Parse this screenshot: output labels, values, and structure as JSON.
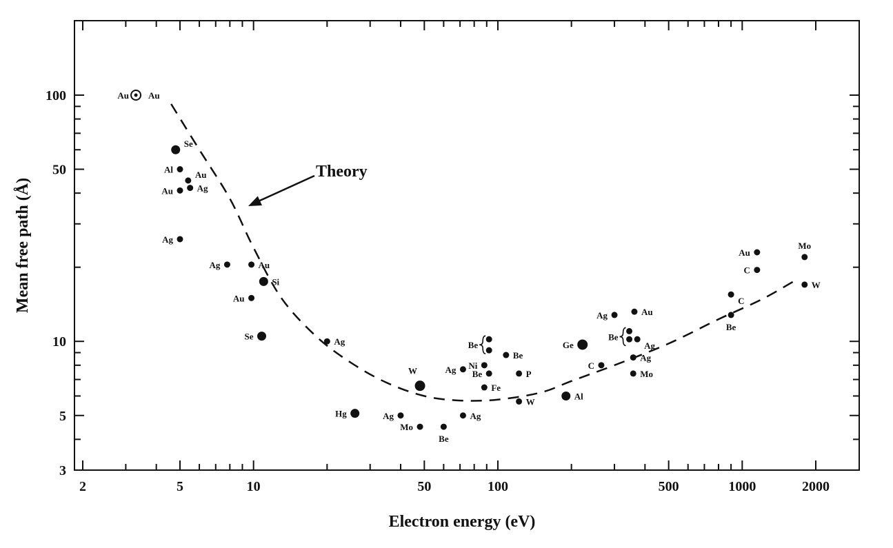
{
  "chart_data": {
    "type": "scatter",
    "xlabel": "Electron energy (eV)",
    "ylabel": "Mean free path (Å)",
    "x_scale": "log",
    "y_scale": "log",
    "xlim": [
      2,
      2500
    ],
    "ylim": [
      3,
      200
    ],
    "x_ticks": [
      {
        "value": 2,
        "label": "2"
      },
      {
        "value": 5,
        "label": "5"
      },
      {
        "value": 10,
        "label": "10"
      },
      {
        "value": 50,
        "label": "50"
      },
      {
        "value": 100,
        "label": "100"
      },
      {
        "value": 500,
        "label": "500"
      },
      {
        "value": 1000,
        "label": "1000"
      },
      {
        "value": 2000,
        "label": "2000"
      }
    ],
    "y_ticks": [
      {
        "value": 3,
        "label": "3"
      },
      {
        "value": 5,
        "label": "5"
      },
      {
        "value": 10,
        "label": "10"
      },
      {
        "value": 50,
        "label": "50"
      },
      {
        "value": 100,
        "label": "100"
      }
    ],
    "annotation": {
      "text": "Theory",
      "points_to": [
        9,
        35
      ]
    },
    "theory_curve": [
      [
        4.6,
        92
      ],
      [
        6,
        60
      ],
      [
        8,
        38
      ],
      [
        10,
        24
      ],
      [
        13,
        15
      ],
      [
        18,
        10.5
      ],
      [
        25,
        8.2
      ],
      [
        35,
        6.8
      ],
      [
        50,
        6.0
      ],
      [
        70,
        5.75
      ],
      [
        100,
        5.8
      ],
      [
        150,
        6.2
      ],
      [
        200,
        6.9
      ],
      [
        300,
        8.0
      ],
      [
        500,
        9.8
      ],
      [
        800,
        12.3
      ],
      [
        1200,
        14.8
      ],
      [
        1700,
        18.0
      ]
    ],
    "points": [
      {
        "x": 3.3,
        "y": 100,
        "label": "Au",
        "pos": "left",
        "size": 4,
        "ring": true
      },
      {
        "x": 3.3,
        "y": 100,
        "label": "Au",
        "pos": "right",
        "size": 0
      },
      {
        "x": 4.8,
        "y": 60,
        "label": "Se",
        "pos": "upright",
        "size": 6
      },
      {
        "x": 5.0,
        "y": 50,
        "label": "Al",
        "pos": "left",
        "size": 4
      },
      {
        "x": 5.4,
        "y": 45,
        "label": "Au",
        "pos": "upright",
        "size": 4
      },
      {
        "x": 5.0,
        "y": 41,
        "label": "Au",
        "pos": "left",
        "size": 4
      },
      {
        "x": 5.5,
        "y": 42,
        "label": "Ag",
        "pos": "right",
        "size": 4
      },
      {
        "x": 5.0,
        "y": 26,
        "label": "Ag",
        "pos": "left",
        "size": 4
      },
      {
        "x": 7.8,
        "y": 20.5,
        "label": "Ag",
        "pos": "left",
        "size": 4
      },
      {
        "x": 9.8,
        "y": 20.5,
        "label": "Au",
        "pos": "right",
        "size": 4
      },
      {
        "x": 11.0,
        "y": 17.5,
        "label": "Si",
        "pos": "right",
        "size": 6
      },
      {
        "x": 9.8,
        "y": 15.0,
        "label": "Au",
        "pos": "left",
        "size": 4
      },
      {
        "x": 10.8,
        "y": 10.5,
        "label": "Se",
        "pos": "left",
        "size": 6
      },
      {
        "x": 20,
        "y": 10,
        "label": "Ag",
        "pos": "right",
        "size": 4
      },
      {
        "x": 26,
        "y": 5.1,
        "label": "Hg",
        "pos": "left",
        "size": 6
      },
      {
        "x": 40,
        "y": 5.0,
        "label": "Ag",
        "pos": "left",
        "size": 4
      },
      {
        "x": 48,
        "y": 6.6,
        "label": "W",
        "pos": "upleft",
        "size": 7
      },
      {
        "x": 48,
        "y": 4.5,
        "label": "Mo",
        "pos": "left",
        "size": 4
      },
      {
        "x": 60,
        "y": 4.5,
        "label": "Be",
        "pos": "below",
        "size": 4
      },
      {
        "x": 72,
        "y": 5.0,
        "label": "Ag",
        "pos": "right",
        "size": 4
      },
      {
        "x": 72,
        "y": 7.7,
        "label": "Ag",
        "pos": "left",
        "size": 4
      },
      {
        "x": 88,
        "y": 8.0,
        "label": "Ni",
        "pos": "left",
        "size": 4
      },
      {
        "x": 92,
        "y": 7.4,
        "label": "Be",
        "pos": "left",
        "size": 4
      },
      {
        "x": 88,
        "y": 6.5,
        "label": "Fe",
        "pos": "right",
        "size": 4
      },
      {
        "x": 92,
        "y": 10.2,
        "label": "Be",
        "pos": "brace-left",
        "size": 4
      },
      {
        "x": 92,
        "y": 9.2,
        "label": "",
        "pos": "none",
        "size": 4
      },
      {
        "x": 108,
        "y": 8.8,
        "label": "Be",
        "pos": "right",
        "size": 4
      },
      {
        "x": 122,
        "y": 7.4,
        "label": "P",
        "pos": "right",
        "size": 4
      },
      {
        "x": 122,
        "y": 5.7,
        "label": "W",
        "pos": "right",
        "size": 4
      },
      {
        "x": 190,
        "y": 6.0,
        "label": "Al",
        "pos": "right",
        "size": 6
      },
      {
        "x": 222,
        "y": 9.7,
        "label": "Ge",
        "pos": "left",
        "size": 7
      },
      {
        "x": 265,
        "y": 8.0,
        "label": "C",
        "pos": "left",
        "size": 4
      },
      {
        "x": 300,
        "y": 12.8,
        "label": "Ag",
        "pos": "left",
        "size": 4
      },
      {
        "x": 345,
        "y": 11.0,
        "label": "Be",
        "pos": "brace-left",
        "size": 4
      },
      {
        "x": 345,
        "y": 10.2,
        "label": "",
        "pos": "none",
        "size": 4
      },
      {
        "x": 372,
        "y": 10.2,
        "label": "Ag",
        "pos": "downright",
        "size": 4
      },
      {
        "x": 362,
        "y": 13.2,
        "label": "Au",
        "pos": "right",
        "size": 4
      },
      {
        "x": 358,
        "y": 8.6,
        "label": "Ag",
        "pos": "right",
        "size": 4
      },
      {
        "x": 358,
        "y": 7.4,
        "label": "Mo",
        "pos": "right",
        "size": 4
      },
      {
        "x": 900,
        "y": 15.5,
        "label": "C",
        "pos": "downright",
        "size": 4
      },
      {
        "x": 900,
        "y": 12.8,
        "label": "Be",
        "pos": "below",
        "size": 4
      },
      {
        "x": 1150,
        "y": 23,
        "label": "Au",
        "pos": "left",
        "size": 4
      },
      {
        "x": 1150,
        "y": 19.5,
        "label": "C",
        "pos": "left",
        "size": 4
      },
      {
        "x": 1800,
        "y": 22,
        "label": "Mo",
        "pos": "above",
        "size": 4
      },
      {
        "x": 1800,
        "y": 17,
        "label": "W",
        "pos": "right",
        "size": 4
      }
    ]
  }
}
